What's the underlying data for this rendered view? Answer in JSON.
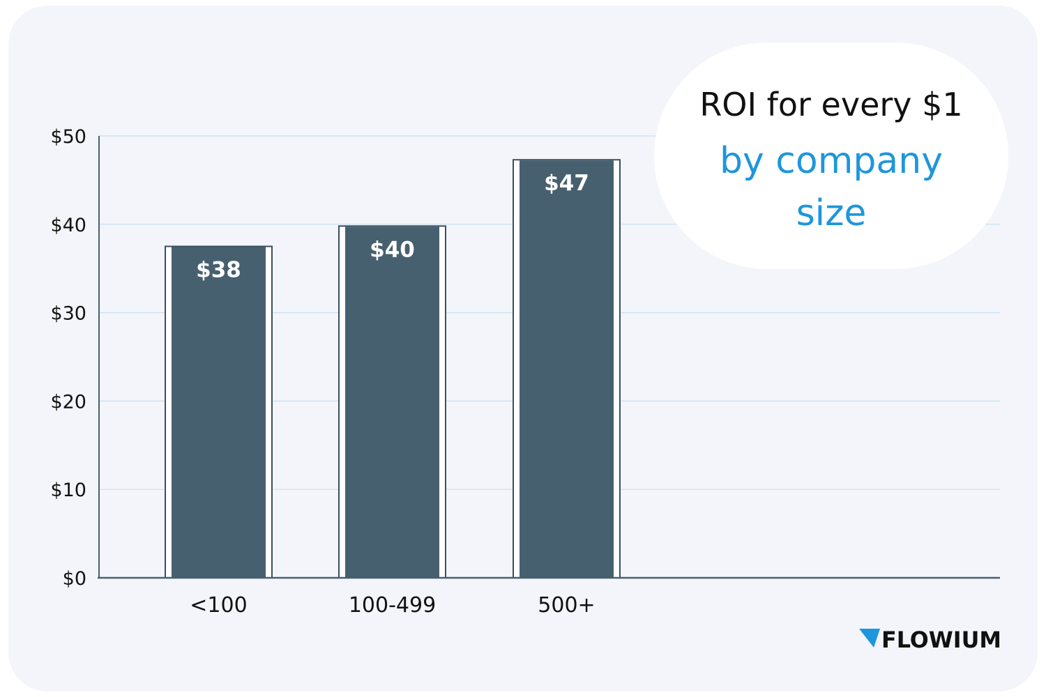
{
  "colors": {
    "background": "#f3f5fa",
    "bar_fill": "#47606f",
    "bar_outline": "#3b4f5c",
    "gridline": "#c7def1",
    "axis": "#47606f",
    "title_accent": "#1e96dc",
    "title_dark": "#111111",
    "logo_accent": "#1e96dc",
    "logo_text": "#111111"
  },
  "title": {
    "line1": "ROI for every $1",
    "line2": "by company",
    "line3": "size"
  },
  "brand": {
    "name": "FLOWIUM",
    "icon": "flowium-triangle-icon"
  },
  "chart_data": {
    "type": "bar",
    "title": "ROI for every $1 by company size",
    "xlabel": "",
    "ylabel": "",
    "categories": [
      "<100",
      "100-499",
      "500+"
    ],
    "values": [
      37.5,
      39.8,
      47.3
    ],
    "data_labels": [
      "$38",
      "$40",
      "$47"
    ],
    "y_ticks": [
      0,
      10,
      20,
      30,
      40,
      50
    ],
    "y_tick_labels": [
      "$0",
      "$10",
      "$20",
      "$30",
      "$40",
      "$50"
    ],
    "ylim": [
      0,
      50
    ],
    "grid": true,
    "legend": "none"
  }
}
